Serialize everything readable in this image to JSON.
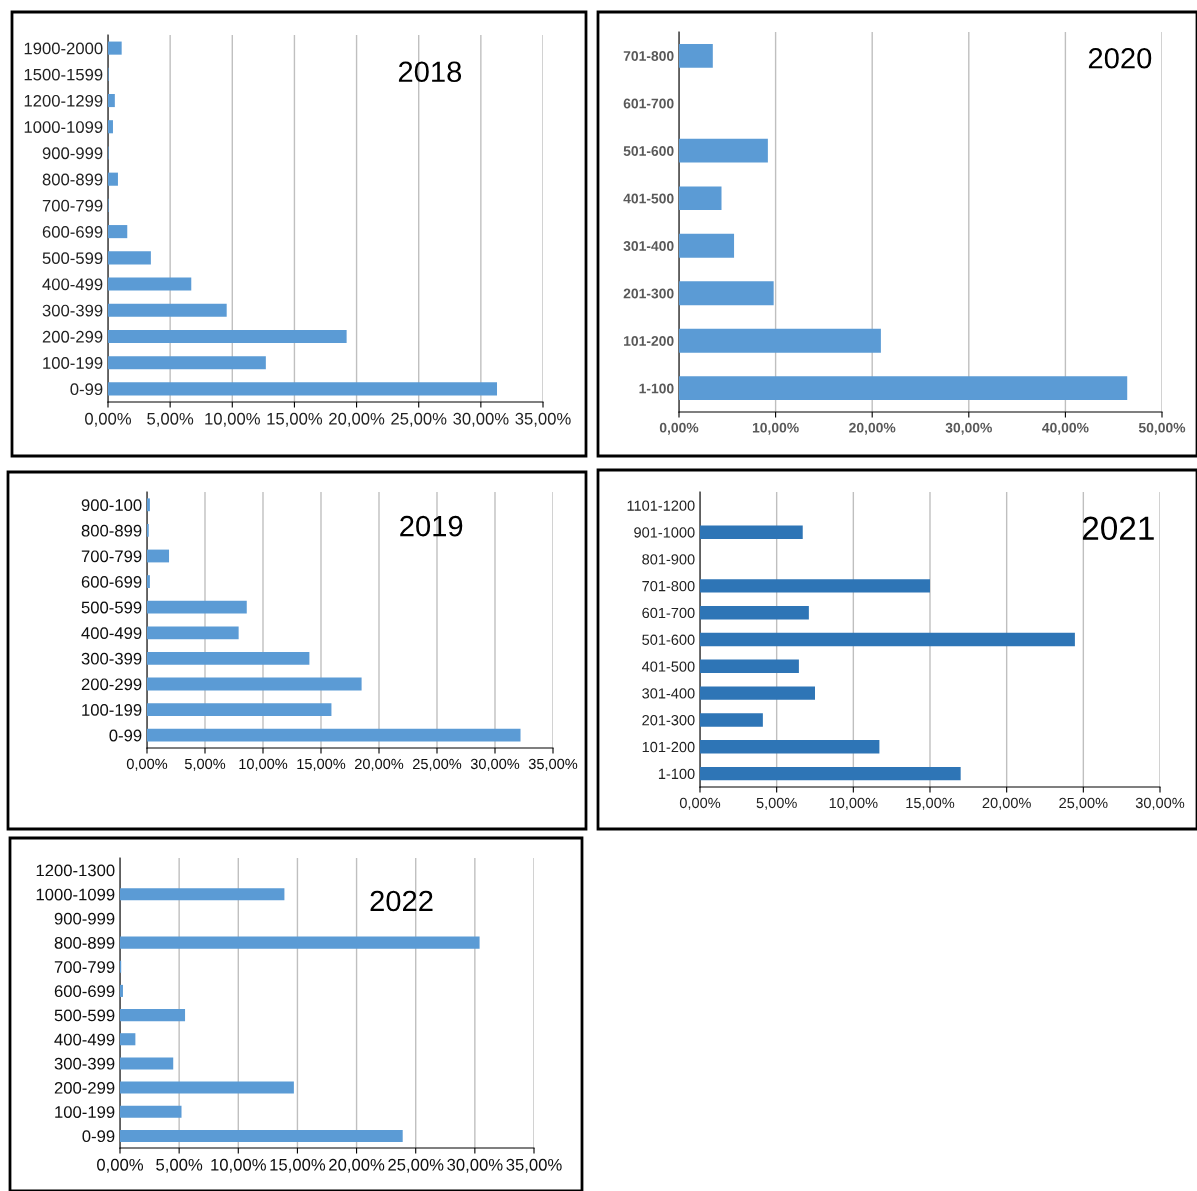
{
  "chart_data": [
    {
      "type": "bar",
      "orientation": "horizontal",
      "title": "2018",
      "grid": "x",
      "color": "#5b9bd5",
      "categories": [
        "1900-2000",
        "1500-1599",
        "1200-1299",
        "1000-1099",
        "900-999",
        "800-899",
        "700-799",
        "600-699",
        "500-599",
        "400-499",
        "300-399",
        "200-299",
        "100-199",
        "0-99"
      ],
      "values": [
        1.1,
        0.05,
        0.55,
        0.4,
        0.05,
        0.8,
        0.05,
        1.55,
        3.45,
        6.7,
        9.55,
        19.2,
        12.7,
        31.3
      ],
      "xlim": [
        0,
        35
      ],
      "xticks": [
        {
          "value": 0,
          "label": "0,00%"
        },
        {
          "value": 5,
          "label": "5,00%"
        },
        {
          "value": 10,
          "label": "10,00%"
        },
        {
          "value": 15,
          "label": "15,00%"
        },
        {
          "value": 20,
          "label": "20,00%"
        },
        {
          "value": 25,
          "label": "25,00%"
        },
        {
          "value": 30,
          "label": "30,00%"
        },
        {
          "value": 35,
          "label": "35,00%"
        }
      ]
    },
    {
      "type": "bar",
      "orientation": "horizontal",
      "title": "2020",
      "grid": "x",
      "color": "#5b9bd5",
      "categories": [
        "701-800",
        "601-700",
        "501-600",
        "401-500",
        "301-400",
        "201-300",
        "101-200",
        "1-100"
      ],
      "values": [
        3.5,
        0,
        9.2,
        4.4,
        5.7,
        9.8,
        20.9,
        46.4
      ],
      "xlim": [
        0,
        50
      ],
      "xticks": [
        {
          "value": 0,
          "label": "0,00%"
        },
        {
          "value": 10,
          "label": "10,00%"
        },
        {
          "value": 20,
          "label": "20,00%"
        },
        {
          "value": 30,
          "label": "30,00%"
        },
        {
          "value": 40,
          "label": "40,00%"
        },
        {
          "value": 50,
          "label": "50,00%"
        }
      ]
    },
    {
      "type": "bar",
      "orientation": "horizontal",
      "title": "2019",
      "grid": "x",
      "color": "#5b9bd5",
      "categories": [
        "900-100",
        "800-899",
        "700-799",
        "600-699",
        "500-599",
        "400-499",
        "300-399",
        "200-299",
        "100-199",
        "0-99"
      ],
      "values": [
        0.25,
        0.15,
        1.9,
        0.25,
        8.6,
        7.9,
        14.0,
        18.5,
        15.9,
        32.2
      ],
      "xlim": [
        0,
        35
      ],
      "xticks": [
        {
          "value": 0,
          "label": "0,00%"
        },
        {
          "value": 5,
          "label": "5,00%"
        },
        {
          "value": 10,
          "label": "10,00%"
        },
        {
          "value": 15,
          "label": "15,00%"
        },
        {
          "value": 20,
          "label": "20,00%"
        },
        {
          "value": 25,
          "label": "25,00%"
        },
        {
          "value": 30,
          "label": "30,00%"
        },
        {
          "value": 35,
          "label": "35,00%"
        }
      ]
    },
    {
      "type": "bar",
      "orientation": "horizontal",
      "title": "2021",
      "grid": "x",
      "color": "#2e75b6",
      "categories": [
        "1101-1200",
        "901-1000",
        "801-900",
        "701-800",
        "601-700",
        "501-600",
        "401-500",
        "301-400",
        "201-300",
        "101-200",
        "1-100"
      ],
      "values": [
        0,
        6.7,
        0,
        15.0,
        7.1,
        24.45,
        6.45,
        7.5,
        4.1,
        11.7,
        17.0
      ],
      "xlim": [
        0,
        30
      ],
      "xticks": [
        {
          "value": 0,
          "label": "0,00%"
        },
        {
          "value": 5,
          "label": "5,00%"
        },
        {
          "value": 10,
          "label": "10,00%"
        },
        {
          "value": 15,
          "label": "15,00%"
        },
        {
          "value": 20,
          "label": "20,00%"
        },
        {
          "value": 25,
          "label": "25,00%"
        },
        {
          "value": 30,
          "label": "30,00%"
        }
      ]
    },
    {
      "type": "bar",
      "orientation": "horizontal",
      "title": "2022",
      "grid": "x",
      "color": "#5b9bd5",
      "categories": [
        "1200-1300",
        "1000-1099",
        "900-999",
        "800-899",
        "700-799",
        "600-699",
        "500-599",
        "400-499",
        "300-399",
        "200-299",
        "100-199",
        "0-99"
      ],
      "values": [
        0,
        13.9,
        0,
        30.4,
        0.1,
        0.25,
        5.5,
        1.3,
        4.5,
        14.7,
        5.2,
        23.9
      ],
      "xlim": [
        0,
        35
      ],
      "xticks": [
        {
          "value": 0,
          "label": "0,00%"
        },
        {
          "value": 5,
          "label": "5,00%"
        },
        {
          "value": 10,
          "label": "10,00%"
        },
        {
          "value": 15,
          "label": "15,00%"
        },
        {
          "value": 20,
          "label": "20,00%"
        },
        {
          "value": 25,
          "label": "25,00%"
        },
        {
          "value": 30,
          "label": "30,00%"
        },
        {
          "value": 35,
          "label": "35,00%"
        }
      ]
    }
  ]
}
